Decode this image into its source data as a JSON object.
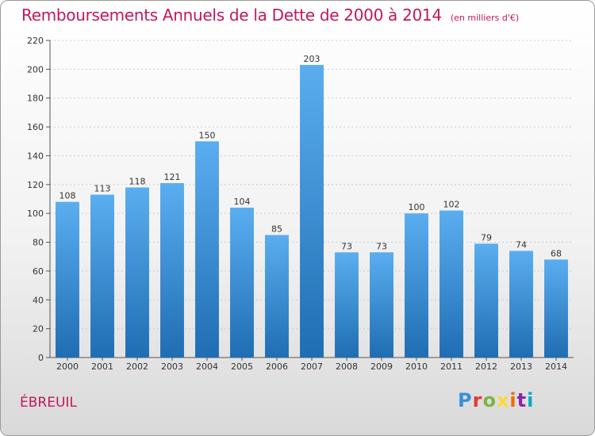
{
  "header": {
    "title": "Remboursements Annuels de la Dette de 2000 à 2014",
    "unit": "(en milliers d'€)"
  },
  "footer": {
    "commune": "ÉBREUIL",
    "logo": [
      "P",
      "r",
      "o",
      "x",
      "i",
      "t",
      "i"
    ]
  },
  "colors": {
    "title": "#c2185b",
    "bar_top": "#5aaef0",
    "bar_bottom": "#1f6db3",
    "grid": "#cccccc"
  },
  "chart_data": {
    "type": "bar",
    "title": "Remboursements Annuels de la Dette de 2000 à 2014",
    "xlabel": "",
    "ylabel": "",
    "categories": [
      "2000",
      "2001",
      "2002",
      "2003",
      "2004",
      "2005",
      "2006",
      "2007",
      "2008",
      "2009",
      "2010",
      "2011",
      "2012",
      "2013",
      "2014"
    ],
    "values": [
      108,
      113,
      118,
      121,
      150,
      104,
      85,
      203,
      73,
      73,
      100,
      102,
      79,
      74,
      68
    ],
    "ylim": [
      0,
      220
    ],
    "yticks": [
      0,
      20,
      40,
      60,
      80,
      100,
      120,
      140,
      160,
      180,
      200,
      220
    ],
    "grid": true,
    "legend": "none"
  }
}
